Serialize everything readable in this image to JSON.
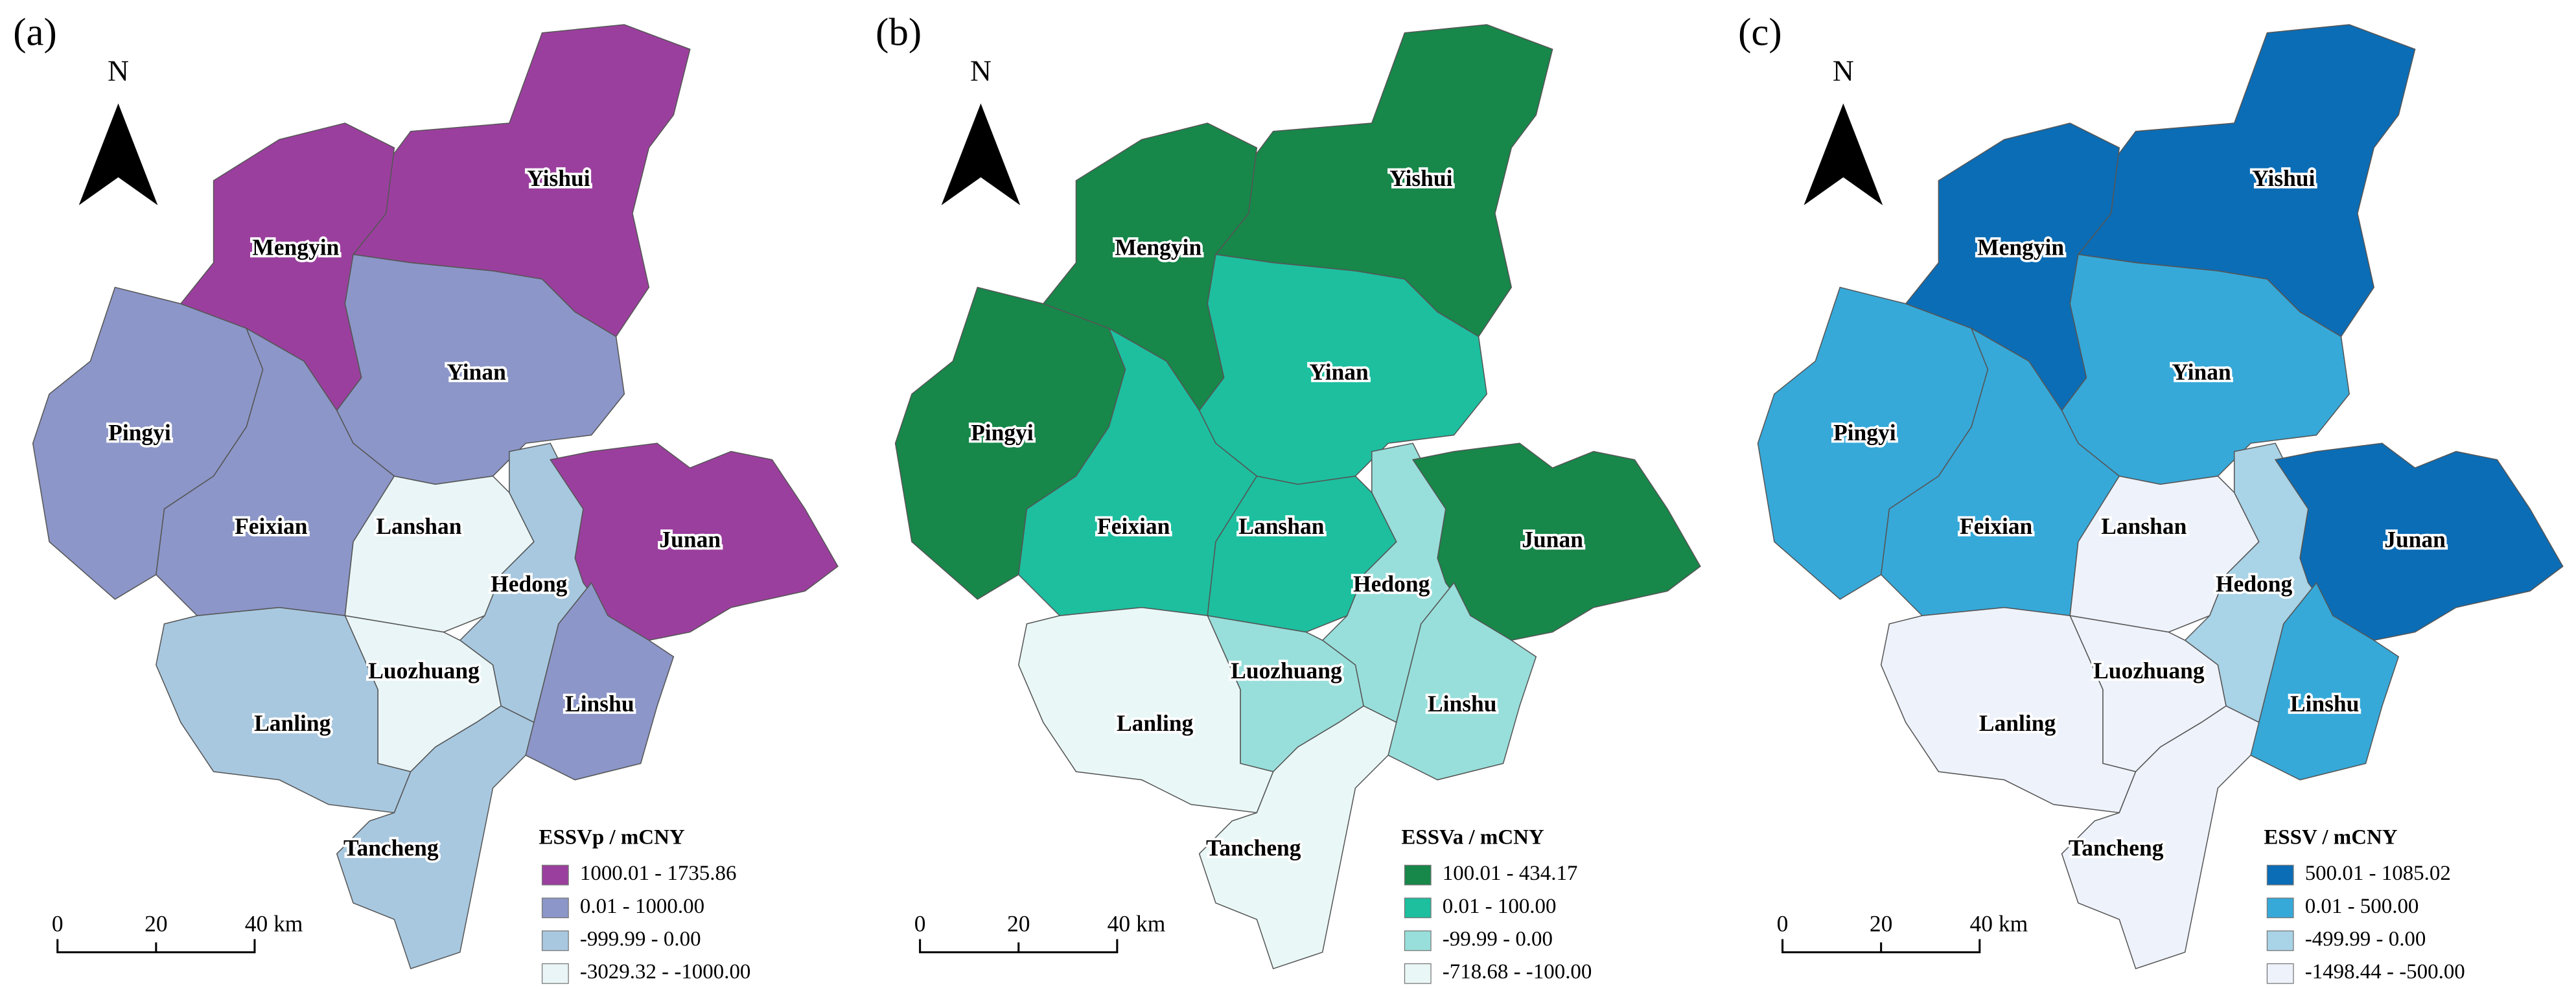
{
  "panels": [
    {
      "label": "(a)",
      "north": "N",
      "scale": [
        "0",
        "20",
        "40 km"
      ],
      "legend": {
        "title": "ESSVp / mCNY",
        "items": [
          {
            "label": "1000.01 - 1735.86",
            "color": "#9b3f9e"
          },
          {
            "label": "0.01 - 1000.00",
            "color": "#8c96c8"
          },
          {
            "label": "-999.99 - 0.00",
            "color": "#a8c8e0"
          },
          {
            "label": "-3029.32 - -1000.00",
            "color": "#e9f5f6"
          }
        ]
      },
      "regions": [
        {
          "name": "Yishui",
          "color": "#9b3f9e"
        },
        {
          "name": "Mengyin",
          "color": "#9b3f9e"
        },
        {
          "name": "Yinan",
          "color": "#8c96c8"
        },
        {
          "name": "Pingyi",
          "color": "#8c96c8"
        },
        {
          "name": "Feixian",
          "color": "#8c96c8"
        },
        {
          "name": "Lanshan",
          "color": "#e9f5f6"
        },
        {
          "name": "Hedong",
          "color": "#a8c8e0"
        },
        {
          "name": "Junan",
          "color": "#9b3f9e"
        },
        {
          "name": "Linshu",
          "color": "#8c96c8"
        },
        {
          "name": "Luozhuang",
          "color": "#e9f5f6"
        },
        {
          "name": "Lanling",
          "color": "#a8c8e0"
        },
        {
          "name": "Tancheng",
          "color": "#a8c8e0"
        }
      ]
    },
    {
      "label": "(b)",
      "north": "N",
      "scale": [
        "0",
        "20",
        "40 km"
      ],
      "legend": {
        "title": "ESSVa / mCNY",
        "items": [
          {
            "label": "100.01 - 434.17",
            "color": "#17874a"
          },
          {
            "label": "0.01 - 100.00",
            "color": "#1dbf9f"
          },
          {
            "label": "-99.99 - 0.00",
            "color": "#98dfdb"
          },
          {
            "label": "-718.68 - -100.00",
            "color": "#e9f7f7"
          }
        ]
      },
      "regions": [
        {
          "name": "Yishui",
          "color": "#17874a"
        },
        {
          "name": "Mengyin",
          "color": "#17874a"
        },
        {
          "name": "Yinan",
          "color": "#1dbf9f"
        },
        {
          "name": "Pingyi",
          "color": "#17874a"
        },
        {
          "name": "Feixian",
          "color": "#1dbf9f"
        },
        {
          "name": "Lanshan",
          "color": "#1dbf9f"
        },
        {
          "name": "Hedong",
          "color": "#98dfdb"
        },
        {
          "name": "Junan",
          "color": "#17874a"
        },
        {
          "name": "Linshu",
          "color": "#98dfdb"
        },
        {
          "name": "Luozhuang",
          "color": "#98dfdb"
        },
        {
          "name": "Lanling",
          "color": "#e9f7f7"
        },
        {
          "name": "Tancheng",
          "color": "#e9f7f7"
        }
      ]
    },
    {
      "label": "(c)",
      "north": "N",
      "scale": [
        "0",
        "20",
        "40 km"
      ],
      "legend": {
        "title": "ESSV / mCNY",
        "items": [
          {
            "label": "500.01 - 1085.02",
            "color": "#0b6db6"
          },
          {
            "label": "0.01 - 500.00",
            "color": "#36a9d9"
          },
          {
            "label": "-499.99 - 0.00",
            "color": "#a9d3e6"
          },
          {
            "label": "-1498.44 - -500.00",
            "color": "#eef2fb"
          }
        ]
      },
      "regions": [
        {
          "name": "Yishui",
          "color": "#0b6db6"
        },
        {
          "name": "Mengyin",
          "color": "#0b6db6"
        },
        {
          "name": "Yinan",
          "color": "#36a9d9"
        },
        {
          "name": "Pingyi",
          "color": "#36a9d9"
        },
        {
          "name": "Feixian",
          "color": "#36a9d9"
        },
        {
          "name": "Lanshan",
          "color": "#eef2fb"
        },
        {
          "name": "Hedong",
          "color": "#a9d3e6"
        },
        {
          "name": "Junan",
          "color": "#0b6db6"
        },
        {
          "name": "Linshu",
          "color": "#36a9d9"
        },
        {
          "name": "Luozhuang",
          "color": "#eef2fb"
        },
        {
          "name": "Lanling",
          "color": "#eef2fb"
        },
        {
          "name": "Tancheng",
          "color": "#eef2fb"
        }
      ]
    }
  ]
}
